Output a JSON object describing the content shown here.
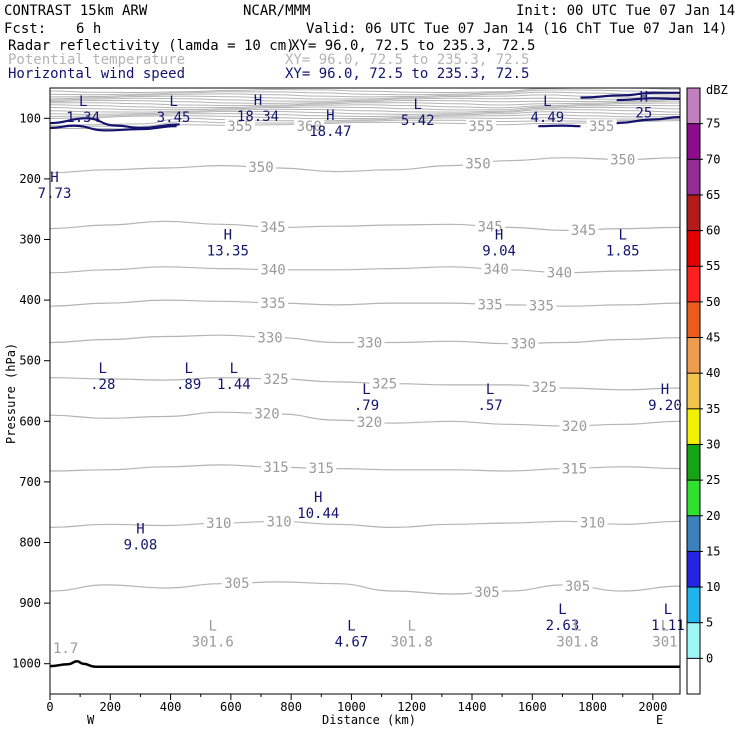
{
  "header": {
    "model": "CONTRAST 15km ARW",
    "center": "NCAR/MMM",
    "init": "Init: 00 UTC Tue 07 Jan 14",
    "fcst_label": "Fcst:",
    "fcst_value": "6 h",
    "valid": "Valid: 06 UTC Tue 07 Jan 14 (16 ChT Tue 07 Jan 14)"
  },
  "fields": [
    {
      "name": "Radar reflectivity (lamda = 10 cm)",
      "xy": "XY=  96.0, 72.5 to 235.3, 72.5",
      "color": "#000000"
    },
    {
      "name": "Potential temperature",
      "xy": "XY=  96.0, 72.5 to 235.3, 72.5",
      "color": "#b4b4b4"
    },
    {
      "name": "Horizontal wind speed",
      "xy": "XY=  96.0, 72.5 to 235.3, 72.5",
      "color": "#14146e"
    }
  ],
  "chart_data": {
    "type": "contour-cross-section",
    "xlabel": "Distance (km)",
    "ylabel": "Pressure (hPa)",
    "xlim": [
      0,
      2090
    ],
    "ylim": [
      1050,
      50
    ],
    "x_ticks": [
      0,
      200,
      400,
      600,
      800,
      1000,
      1200,
      1400,
      1600,
      1800,
      2000
    ],
    "y_ticks": [
      100,
      200,
      300,
      400,
      500,
      600,
      700,
      800,
      900,
      1000
    ],
    "x_end_labels": {
      "left": "W",
      "right": "E"
    },
    "theta_contours": [
      {
        "level": 350,
        "p": [
          190,
          185,
          182,
          178,
          182,
          188,
          185,
          178,
          170,
          165,
          168,
          165
        ],
        "labels": [
          {
            "x": 700,
            "text": "350"
          },
          {
            "x": 1420,
            "text": "350"
          },
          {
            "x": 1900,
            "text": "350"
          }
        ]
      },
      {
        "level": 345,
        "p": [
          282,
          276,
          270,
          275,
          280,
          278,
          276,
          275,
          280,
          285,
          282,
          280
        ],
        "labels": [
          {
            "x": 740,
            "text": "345"
          },
          {
            "x": 1460,
            "text": "345"
          },
          {
            "x": 1770,
            "text": "345"
          }
        ]
      },
      {
        "level": 340,
        "p": [
          355,
          350,
          345,
          348,
          350,
          350,
          348,
          345,
          350,
          355,
          352,
          350
        ],
        "labels": [
          {
            "x": 740,
            "text": "340"
          },
          {
            "x": 1480,
            "text": "340"
          },
          {
            "x": 1690,
            "text": "340"
          }
        ]
      },
      {
        "level": 335,
        "p": [
          410,
          405,
          400,
          402,
          405,
          408,
          405,
          405,
          408,
          410,
          408,
          405
        ],
        "labels": [
          {
            "x": 740,
            "text": "335"
          },
          {
            "x": 1460,
            "text": "335"
          },
          {
            "x": 1630,
            "text": "335"
          }
        ]
      },
      {
        "level": 330,
        "p": [
          470,
          465,
          460,
          458,
          462,
          470,
          470,
          468,
          472,
          470,
          465,
          462
        ],
        "labels": [
          {
            "x": 730,
            "text": "330"
          },
          {
            "x": 1060,
            "text": "330"
          },
          {
            "x": 1570,
            "text": "330"
          }
        ]
      },
      {
        "level": 325,
        "p": [
          528,
          530,
          532,
          528,
          530,
          535,
          538,
          540,
          540,
          545,
          548,
          545
        ],
        "labels": [
          {
            "x": 750,
            "text": "325"
          },
          {
            "x": 1110,
            "text": "325"
          },
          {
            "x": 1640,
            "text": "325"
          }
        ]
      },
      {
        "level": 320,
        "p": [
          590,
          595,
          592,
          585,
          588,
          598,
          603,
          600,
          605,
          608,
          605,
          600
        ],
        "labels": [
          {
            "x": 720,
            "text": "320"
          },
          {
            "x": 1060,
            "text": "320"
          },
          {
            "x": 1740,
            "text": "320"
          }
        ]
      },
      {
        "level": 315,
        "p": [
          682,
          680,
          675,
          672,
          676,
          678,
          680,
          680,
          682,
          678,
          675,
          678
        ],
        "labels": [
          {
            "x": 750,
            "text": "315"
          },
          {
            "x": 900,
            "text": "315"
          },
          {
            "x": 1740,
            "text": "315"
          }
        ]
      },
      {
        "level": 310,
        "p": [
          775,
          770,
          772,
          768,
          765,
          770,
          775,
          770,
          768,
          765,
          770,
          765
        ],
        "labels": [
          {
            "x": 560,
            "text": "310"
          },
          {
            "x": 760,
            "text": "310"
          },
          {
            "x": 1800,
            "text": "310"
          }
        ]
      },
      {
        "level": 305,
        "p": [
          880,
          870,
          875,
          868,
          865,
          868,
          880,
          885,
          880,
          870,
          880,
          872
        ],
        "labels": [
          {
            "x": 620,
            "text": "305"
          },
          {
            "x": 1450,
            "text": "305"
          },
          {
            "x": 1750,
            "text": "305"
          }
        ]
      }
    ],
    "theta_upper_labels": [
      {
        "x": 630,
        "p": 113,
        "text": "355"
      },
      {
        "x": 860,
        "p": 113,
        "text": "360"
      },
      {
        "x": 1430,
        "p": 113,
        "text": "355"
      },
      {
        "x": 1830,
        "p": 113,
        "text": "355"
      }
    ],
    "wind_extrema": [
      {
        "kind": "L",
        "value": "1.34",
        "x": 110,
        "p": 80
      },
      {
        "kind": "L",
        "value": "3.45",
        "x": 410,
        "p": 80
      },
      {
        "kind": "H",
        "value": "18.34",
        "x": 690,
        "p": 78
      },
      {
        "kind": "H",
        "value": "18.47",
        "x": 930,
        "p": 103
      },
      {
        "kind": "L",
        "value": "5.42",
        "x": 1220,
        "p": 85
      },
      {
        "kind": "L",
        "value": "4.49",
        "x": 1650,
        "p": 80
      },
      {
        "kind": "H",
        "value": "25",
        "x": 1970,
        "p": 72
      },
      {
        "kind": "H",
        "value": "7.73",
        "x": 15,
        "p": 205
      },
      {
        "kind": "H",
        "value": "13.35",
        "x": 590,
        "p": 300
      },
      {
        "kind": "H",
        "value": "9.04",
        "x": 1490,
        "p": 300
      },
      {
        "kind": "L",
        "value": "1.85",
        "x": 1900,
        "p": 300
      },
      {
        "kind": "L",
        "value": ".28",
        "x": 175,
        "p": 520
      },
      {
        "kind": "L",
        "value": ".89",
        "x": 460,
        "p": 520
      },
      {
        "kind": "L",
        "value": "1.44",
        "x": 610,
        "p": 520
      },
      {
        "kind": "L",
        "value": ".79",
        "x": 1050,
        "p": 555
      },
      {
        "kind": "L",
        "value": ".57",
        "x": 1460,
        "p": 555
      },
      {
        "kind": "H",
        "value": "9.20",
        "x": 2040,
        "p": 555
      },
      {
        "kind": "H",
        "value": "10.44",
        "x": 890,
        "p": 733
      },
      {
        "kind": "H",
        "value": "9.08",
        "x": 300,
        "p": 785
      },
      {
        "kind": "L",
        "value": "2.63",
        "x": 1700,
        "p": 918
      },
      {
        "kind": "L",
        "value": "1.11",
        "x": 2050,
        "p": 918
      },
      {
        "kind": "L",
        "value": "4.67",
        "x": 1000,
        "p": 945
      }
    ],
    "theta_extrema": [
      {
        "kind": "L",
        "value": "301.6",
        "x": 540,
        "p": 945
      },
      {
        "kind": "L",
        "value": "301.8",
        "x": 1200,
        "p": 945
      },
      {
        "kind": "L",
        "value": "301.8",
        "x": 1750,
        "p": 945
      },
      {
        "kind": "L",
        "value": "301",
        "x": 2040,
        "p": 945
      }
    ],
    "terrain_label": {
      "text": "1.7",
      "x": 0,
      "p": 982
    },
    "colorbar": {
      "units": "dBZ",
      "levels": [
        "0",
        "5",
        "10",
        "15",
        "20",
        "25",
        "30",
        "35",
        "40",
        "45",
        "50",
        "55",
        "60",
        "65",
        "70",
        "75"
      ],
      "colors": [
        "#ffffff",
        "#9cf6f6",
        "#20b4ec",
        "#2424e4",
        "#3c80bc",
        "#30e030",
        "#14a414",
        "#f0f000",
        "#f0c44c",
        "#f09c50",
        "#ec5c1c",
        "#ff2020",
        "#e40000",
        "#b41c1c",
        "#942c94",
        "#8c0c8c",
        "#c080c0"
      ]
    }
  }
}
